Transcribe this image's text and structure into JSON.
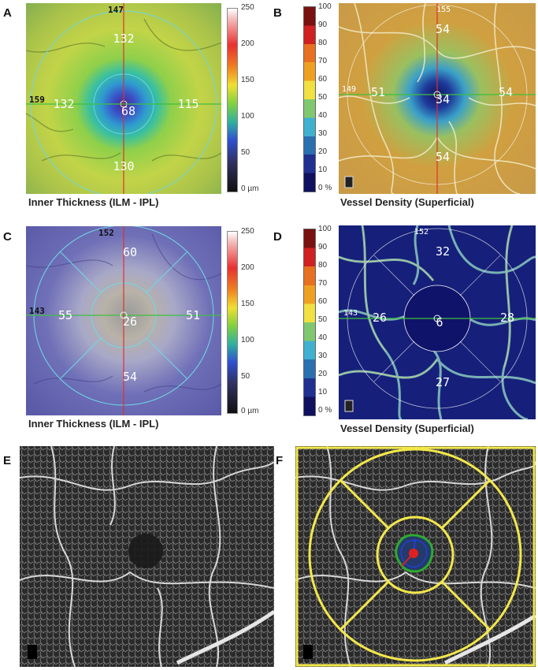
{
  "panels": {
    "A": {
      "letter": "A",
      "caption": "Inner Thickness (ILM - IPL)",
      "top": "132",
      "left": "132",
      "right": "115",
      "bottom": "130",
      "center": "68",
      "edge_top": "147",
      "edge_left": "159"
    },
    "B": {
      "letter": "B",
      "caption": "Vessel Density (Superficial)",
      "top": "54",
      "left": "51",
      "right": "54",
      "bottom": "54",
      "center": "34",
      "edge_top": "155",
      "edge_left": "149"
    },
    "C": {
      "letter": "C",
      "caption": "Inner Thickness (ILM - IPL)",
      "top": "60",
      "left": "55",
      "right": "51",
      "bottom": "54",
      "center": "26",
      "edge_top": "152",
      "edge_left": "143"
    },
    "D": {
      "letter": "D",
      "caption": "Vessel Density (Superficial)",
      "top": "32",
      "left": "26",
      "right": "28",
      "bottom": "27",
      "center": "6",
      "edge_top": "152",
      "edge_left": "143"
    },
    "E": {
      "letter": "E"
    },
    "F": {
      "letter": "F"
    }
  },
  "thickness_scale": {
    "ticks": [
      "250",
      "200",
      "150",
      "100",
      "50",
      "0 µm"
    ]
  },
  "density_scale": {
    "ticks": [
      "100",
      "90",
      "80",
      "70",
      "60",
      "50",
      "40",
      "30",
      "20",
      "10",
      "0 %"
    ]
  },
  "colors": {
    "circle": "#6fd8e6",
    "hline": "#3fbf3f",
    "vline": "#e03030",
    "yellow": "#f3e84a",
    "faz_green": "#2faa2f",
    "faz_red": "#e02020",
    "faz_blue": "#2040d0"
  }
}
